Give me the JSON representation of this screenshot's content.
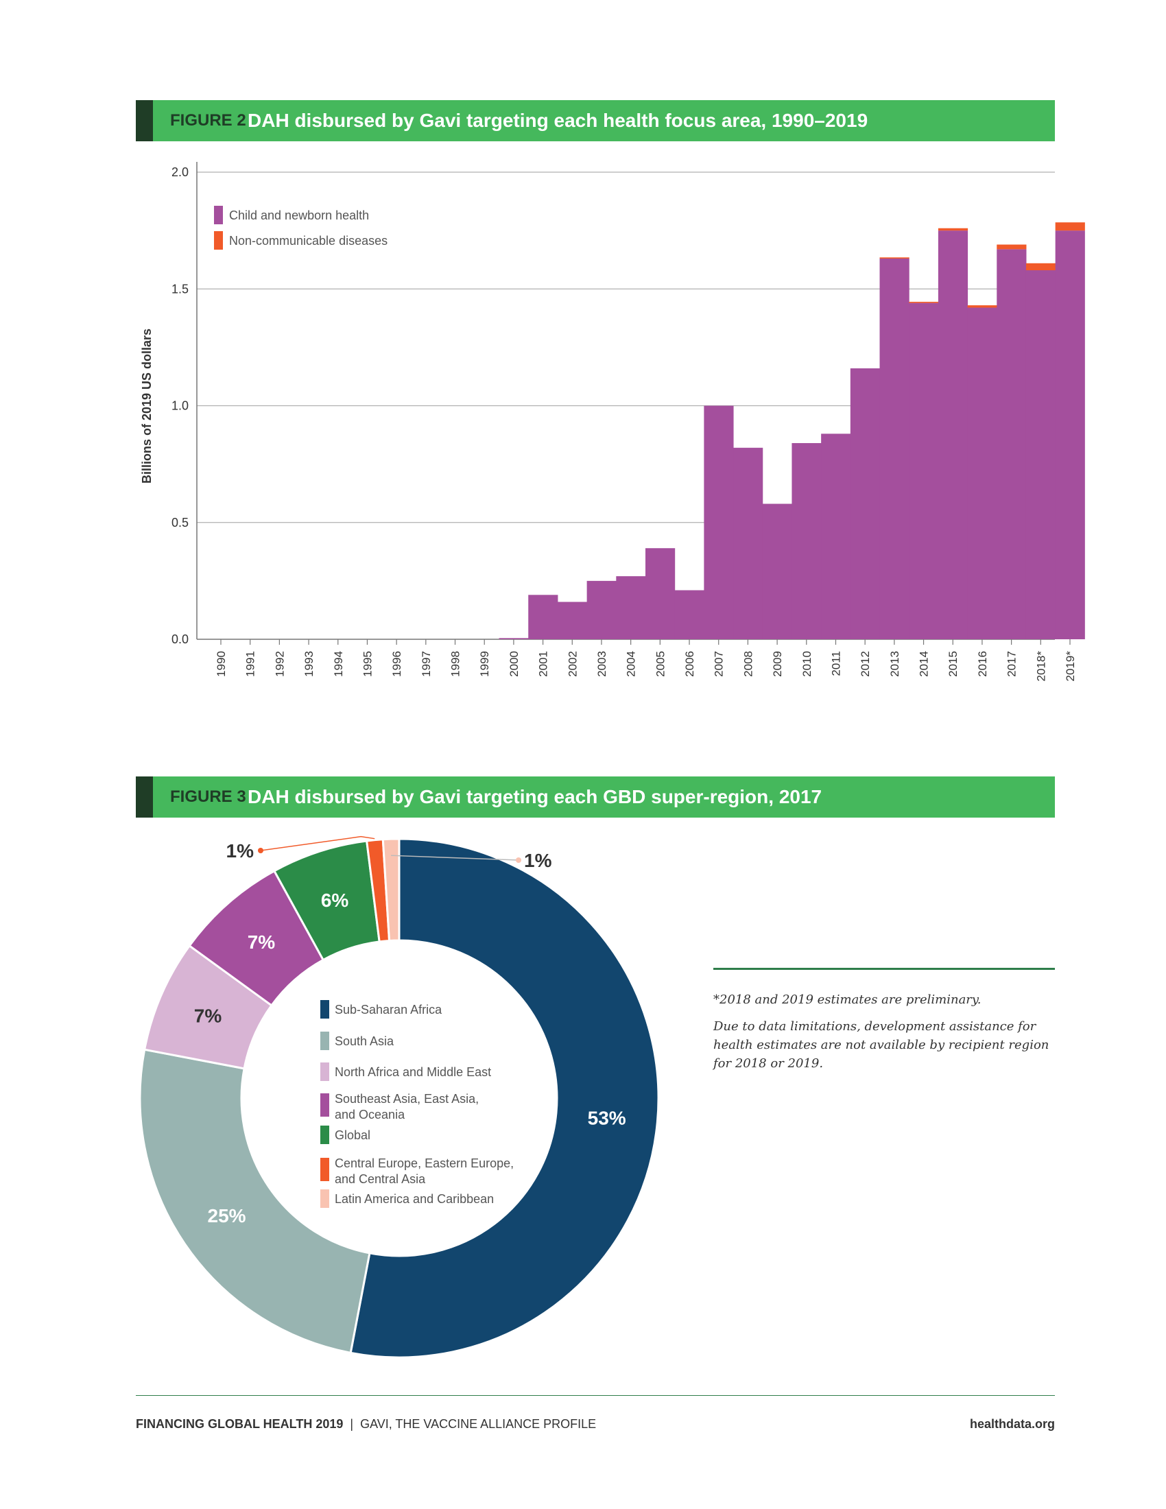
{
  "figure2": {
    "label": "FIGURE 2",
    "title": "DAH disbursed by Gavi targeting each health focus area, 1990–2019"
  },
  "figure3": {
    "label": "FIGURE 3",
    "title": "DAH disbursed by Gavi targeting each GBD super-region, 2017"
  },
  "notes": {
    "preliminary": "*2018 and 2019 estimates are preliminary.",
    "limitations": "Due to data limitations, development assistance for health estimates are not available by recipient region for 2018 or 2019."
  },
  "footer": {
    "report": "FINANCING GLOBAL HEALTH 2019",
    "separator": "|",
    "profile": "GAVI, THE VACCINE ALLIANCE PROFILE",
    "site": "healthdata.org"
  },
  "colors": {
    "header_green": "#45b85c",
    "header_dark": "#1f3d26"
  },
  "chart_data": [
    {
      "type": "bar",
      "stacked": true,
      "ylabel": "Billions of 2019 US dollars",
      "ylim": [
        0,
        2.0
      ],
      "yticks": [
        "0.0",
        "0.5",
        "1.0",
        "1.5",
        "2.0"
      ],
      "grid": true,
      "legend_position": "top-left",
      "categories": [
        "1990",
        "1991",
        "1992",
        "1993",
        "1994",
        "1995",
        "1996",
        "1997",
        "1998",
        "1999",
        "2000",
        "2001",
        "2002",
        "2003",
        "2004",
        "2005",
        "2006",
        "2007",
        "2008",
        "2009",
        "2010",
        "2011",
        "2012",
        "2013",
        "2014",
        "2015",
        "2016",
        "2017",
        "2018*",
        "2019*"
      ],
      "series": [
        {
          "name": "Child and newborn health",
          "color": "#a44f9d",
          "values": [
            0,
            0,
            0,
            0,
            0,
            0,
            0,
            0,
            0,
            0,
            0.005,
            0.19,
            0.16,
            0.25,
            0.27,
            0.39,
            0.21,
            1.0,
            0.82,
            0.58,
            0.84,
            0.88,
            1.16,
            1.63,
            1.44,
            1.75,
            1.42,
            1.67,
            1.58,
            1.75
          ]
        },
        {
          "name": "Non-communicable diseases",
          "color": "#f15a29",
          "values": [
            0,
            0,
            0,
            0,
            0,
            0,
            0,
            0,
            0,
            0,
            0,
            0,
            0,
            0,
            0,
            0,
            0,
            0,
            0,
            0,
            0,
            0,
            0,
            0.005,
            0.005,
            0.01,
            0.01,
            0.02,
            0.03,
            0.035
          ]
        }
      ]
    },
    {
      "type": "pie",
      "donut": true,
      "slices": [
        {
          "name": "Sub-Saharan Africa",
          "value": 53,
          "label": "53%",
          "color": "#12466e"
        },
        {
          "name": "South Asia",
          "value": 25,
          "label": "25%",
          "color": "#98b4b1"
        },
        {
          "name": "North Africa and Middle East",
          "value": 7,
          "label": "7%",
          "color": "#d8b4d4"
        },
        {
          "name": "Southeast Asia, East Asia, and Oceania",
          "value": 7,
          "label": "7%",
          "color": "#a44f9d"
        },
        {
          "name": "Global",
          "value": 6,
          "label": "6%",
          "color": "#2b8c48"
        },
        {
          "name": "Central Europe, Eastern Europe, and Central Asia",
          "value": 1,
          "label": "1%",
          "color": "#f15a29"
        },
        {
          "name": "Latin America and Caribbean",
          "value": 1,
          "label": "1%",
          "color": "#f9c3b1"
        }
      ]
    }
  ]
}
